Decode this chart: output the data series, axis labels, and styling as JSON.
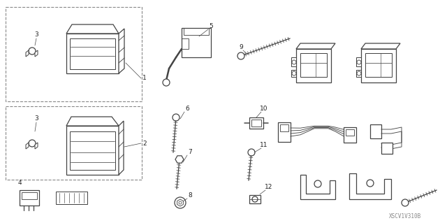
{
  "bg_color": "#ffffff",
  "line_color": "#444444",
  "text_color": "#222222",
  "watermark": "XSCV1V310B",
  "figsize": [
    6.4,
    3.19
  ],
  "dpi": 100,
  "label_fs": 6.5,
  "lw": 0.9
}
